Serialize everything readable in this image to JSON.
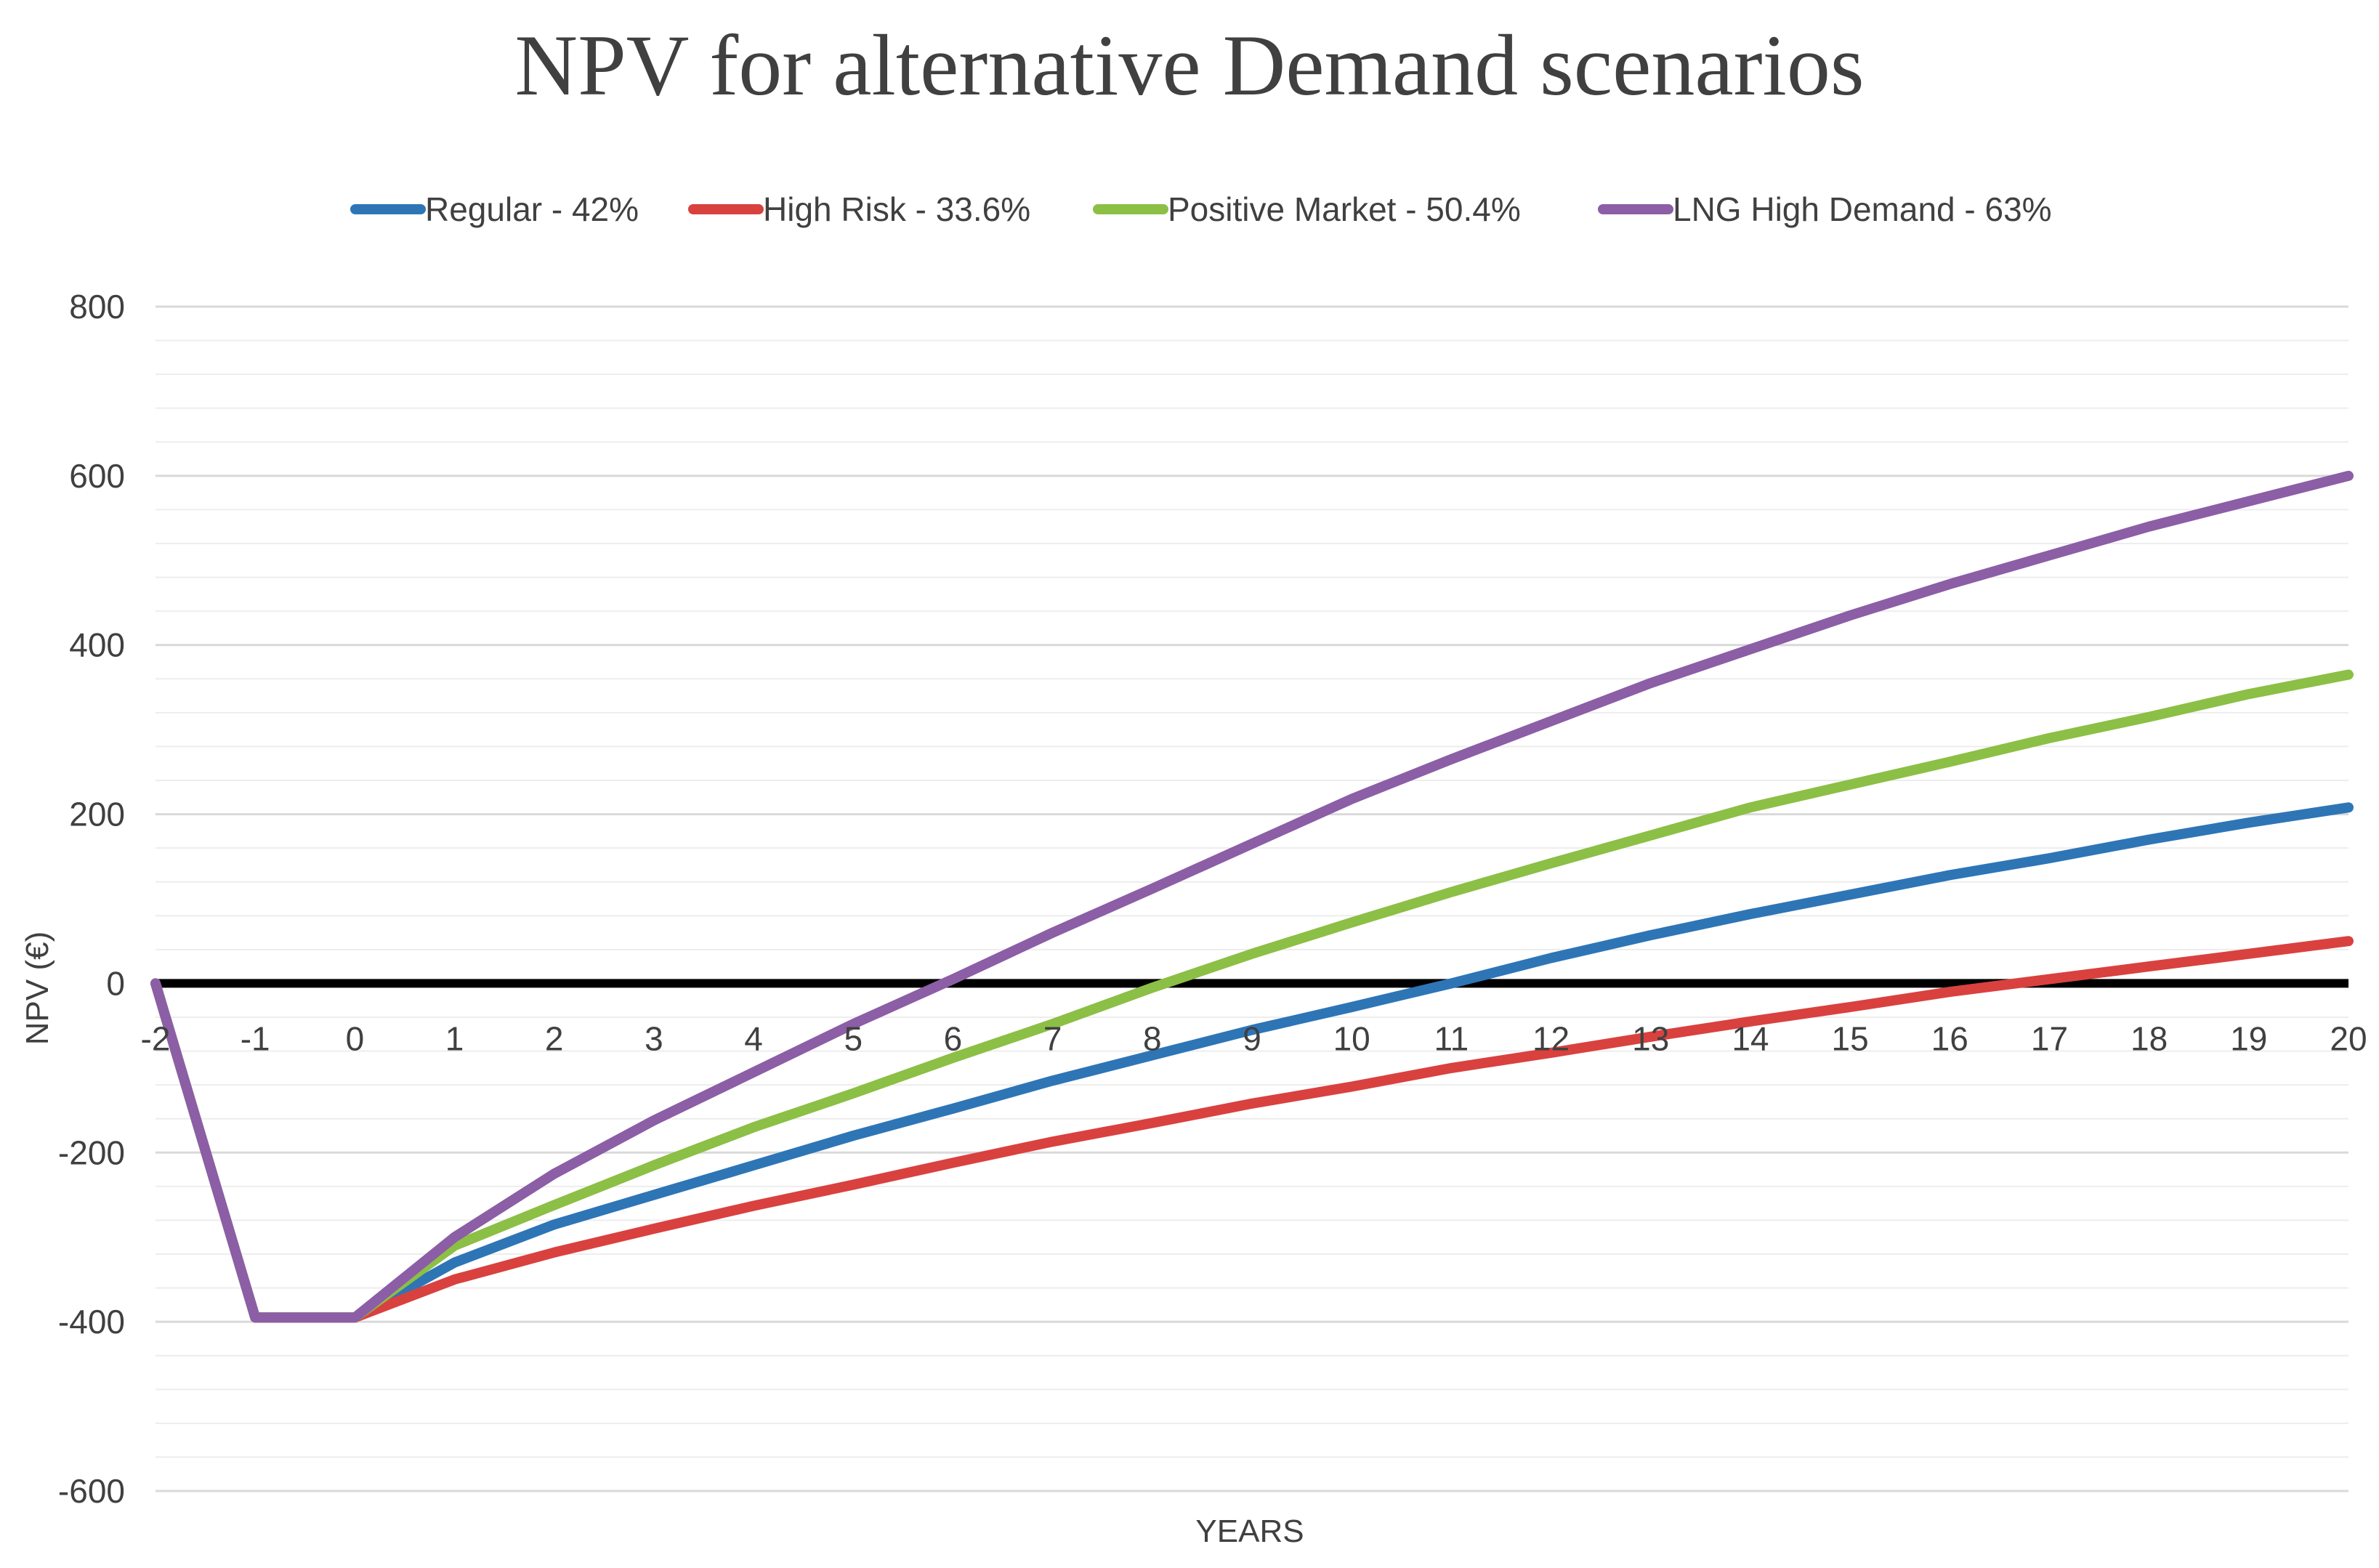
{
  "chart_data": {
    "type": "line",
    "title": "NPV for alternative Demand scenarios",
    "xlabel": "YEARS",
    "ylabel": "NPV (€)",
    "x": [
      -2,
      -1,
      0,
      1,
      2,
      3,
      4,
      5,
      6,
      7,
      8,
      9,
      10,
      11,
      12,
      13,
      14,
      15,
      16,
      17,
      18,
      19,
      20
    ],
    "xticks": [
      "-2",
      "-1",
      "0",
      "1",
      "2",
      "3",
      "4",
      "5",
      "6",
      "7",
      "8",
      "9",
      "10",
      "11",
      "12",
      "13",
      "14",
      "15",
      "16",
      "17",
      "18",
      "19",
      "20"
    ],
    "yticks": [
      "800",
      "600",
      "400",
      "200",
      "0",
      "-200",
      "-400",
      "-600"
    ],
    "ytick_values": [
      800,
      600,
      400,
      200,
      0,
      -200,
      -400,
      -600
    ],
    "ylim": [
      -600,
      800
    ],
    "xlim": [
      -2,
      20
    ],
    "grid": true,
    "minor_grid": true,
    "zero_line": true,
    "legend_position": "top",
    "series": [
      {
        "name": "Regular - 42%",
        "color": "#2e75b6",
        "values": [
          0,
          -395,
          -395,
          -330,
          -285,
          -250,
          -215,
          -180,
          -148,
          -115,
          -85,
          -55,
          -28,
          0,
          30,
          57,
          82,
          105,
          128,
          148,
          170,
          190,
          208
        ]
      },
      {
        "name": "High Risk - 33.6%",
        "color": "#d9413f",
        "values": [
          0,
          -395,
          -395,
          -350,
          -318,
          -290,
          -263,
          -238,
          -212,
          -187,
          -165,
          -142,
          -122,
          -100,
          -82,
          -63,
          -45,
          -28,
          -10,
          5,
          20,
          35,
          50
        ]
      },
      {
        "name": "Positive Market - 50.4%",
        "color": "#8cbf45",
        "values": [
          0,
          -395,
          -395,
          -310,
          -262,
          -215,
          -170,
          -130,
          -88,
          -48,
          -5,
          35,
          72,
          108,
          142,
          175,
          208,
          235,
          262,
          290,
          315,
          342,
          365
        ]
      },
      {
        "name": "LNG High Demand - 63%",
        "color": "#8c5ea6",
        "values": [
          0,
          -395,
          -395,
          -300,
          -225,
          -162,
          -105,
          -48,
          5,
          60,
          112,
          165,
          218,
          265,
          310,
          355,
          395,
          435,
          472,
          506,
          540,
          570,
          600
        ]
      }
    ]
  }
}
